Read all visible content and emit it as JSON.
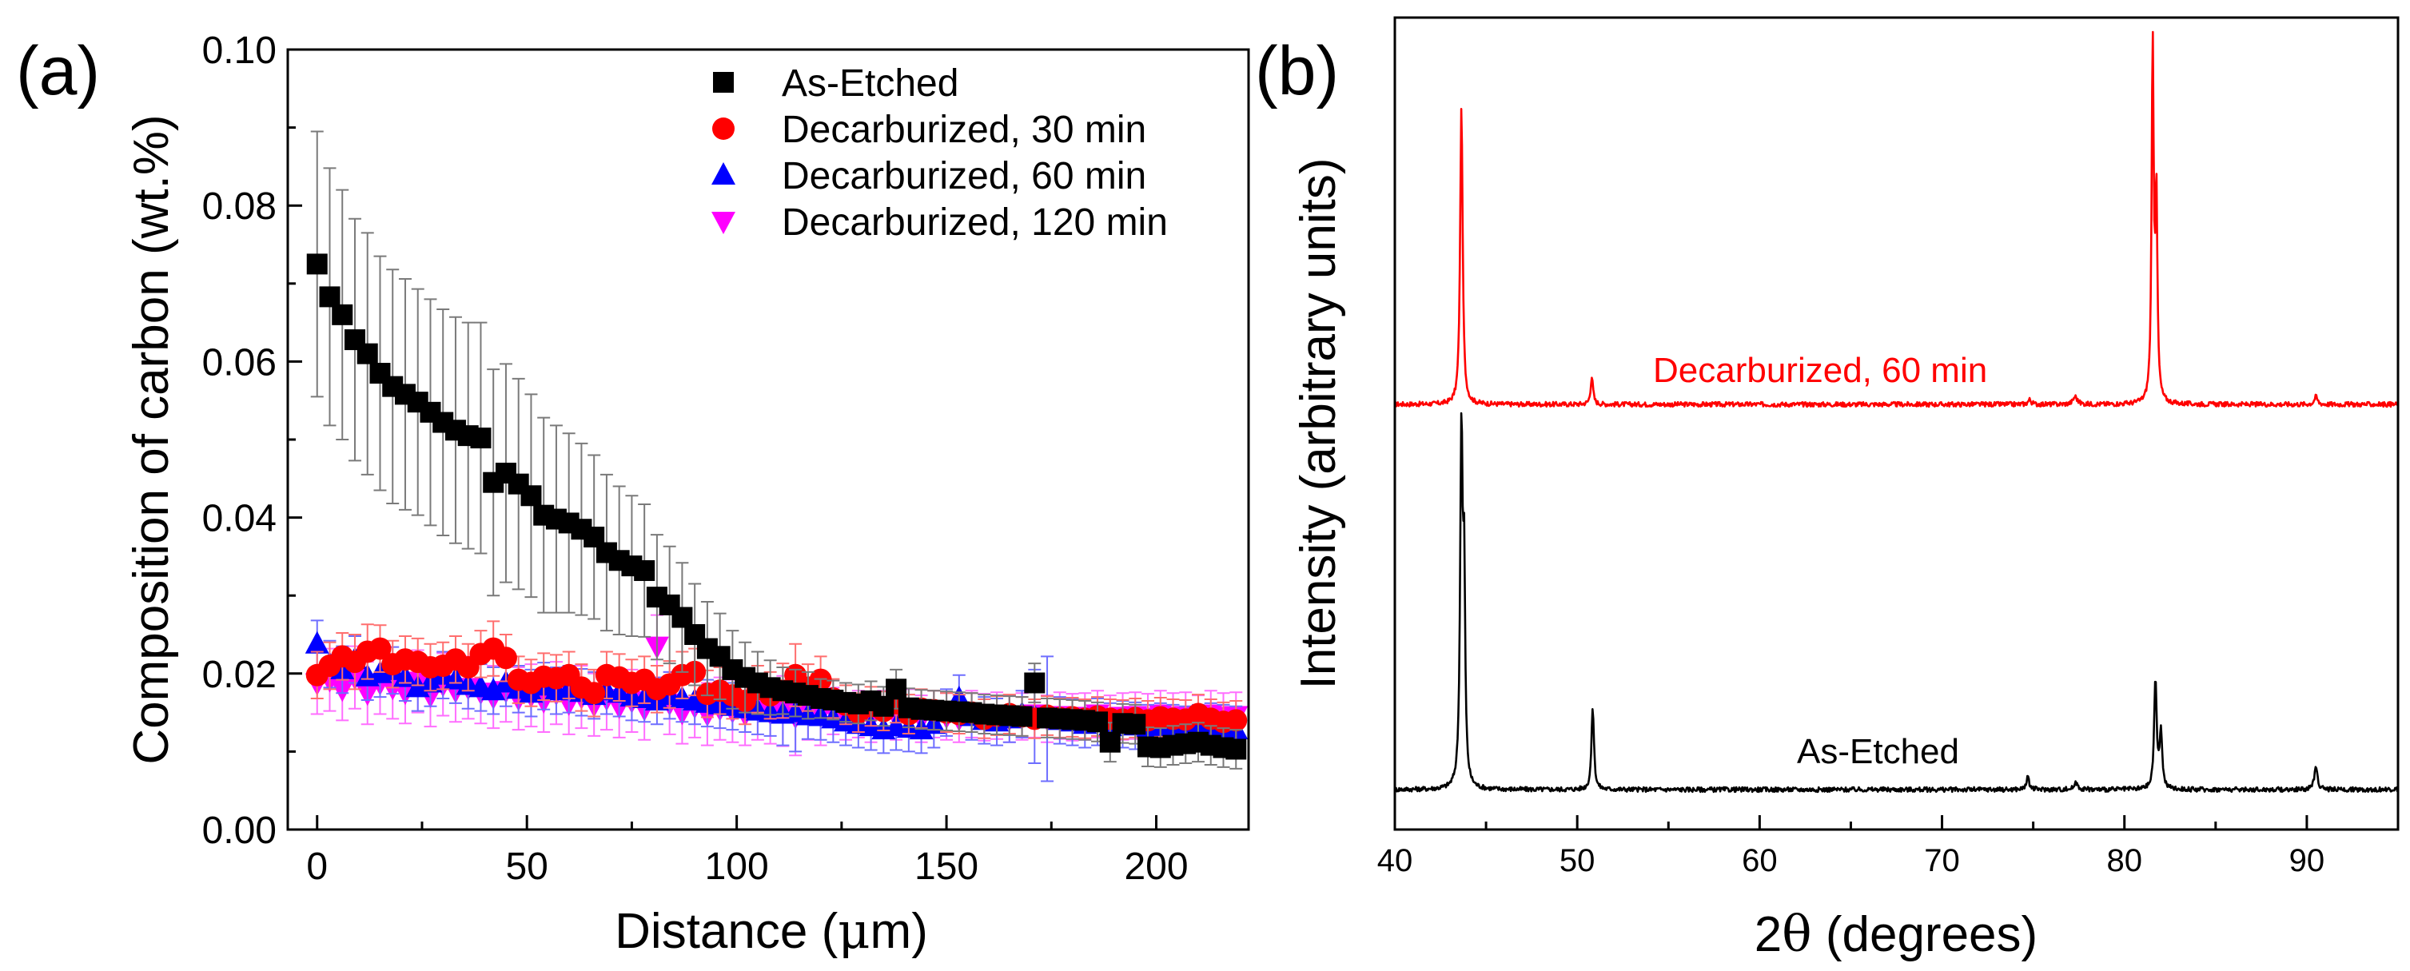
{
  "panel_a": {
    "label": "(a)",
    "xlabel_prefix": "Distance (",
    "xlabel_mu": "μ",
    "xlabel_suffix": "m)",
    "ylabel": "Composition of carbon (wt.%)",
    "legend": [
      {
        "key": "as_etched",
        "label": "As-Etched"
      },
      {
        "key": "d30",
        "label": "Decarburized, 30 min"
      },
      {
        "key": "d60",
        "label": "Decarburized, 60 min"
      },
      {
        "key": "d120",
        "label": "Decarburized, 120 min"
      }
    ]
  },
  "panel_b": {
    "label": "(b)",
    "xlabel_prefix": "2",
    "xlabel_theta": "θ",
    "xlabel_suffix": " (degrees)",
    "ylabel": "Intensity (arbitrary units)",
    "curve_labels": {
      "top": "Decarburized, 60 min",
      "bottom": "As-Etched"
    }
  },
  "chart_data": [
    {
      "type": "scatter",
      "title": "",
      "xlabel": "Distance (μm)",
      "ylabel": "Composition of carbon (wt.%)",
      "xlim": [
        -7,
        222
      ],
      "ylim": [
        0,
        0.1
      ],
      "xticks": [
        0,
        50,
        100,
        150,
        200
      ],
      "yticks": [
        "0.00",
        "0.02",
        "0.04",
        "0.06",
        "0.08",
        "0.10"
      ],
      "x": [
        0,
        3,
        6,
        9,
        12,
        15,
        18,
        21,
        24,
        27,
        30,
        33,
        36,
        39,
        42,
        45,
        48,
        51,
        54,
        57,
        60,
        63,
        66,
        69,
        72,
        75,
        78,
        81,
        84,
        87,
        90,
        93,
        96,
        99,
        102,
        105,
        108,
        111,
        114,
        117,
        120,
        123,
        126,
        129,
        132,
        135,
        138,
        141,
        144,
        147,
        150,
        153,
        156,
        159,
        162,
        165,
        168,
        171,
        174,
        177,
        180,
        183,
        186,
        189,
        192,
        195,
        198,
        201,
        204,
        207,
        210,
        213,
        216,
        219
      ],
      "series": [
        {
          "name": "As-Etched",
          "color": "#000000",
          "marker": "square",
          "values": [
            0.0725,
            0.0683,
            0.066,
            0.0628,
            0.061,
            0.0585,
            0.0568,
            0.0558,
            0.0548,
            0.0535,
            0.0522,
            0.0512,
            0.0505,
            0.0502,
            0.0445,
            0.0457,
            0.0443,
            0.0428,
            0.0403,
            0.0398,
            0.0393,
            0.0385,
            0.0375,
            0.0355,
            0.0345,
            0.0338,
            0.0332,
            0.0298,
            0.0288,
            0.0272,
            0.025,
            0.0232,
            0.0222,
            0.0205,
            0.0195,
            0.0188,
            0.0182,
            0.0178,
            0.0175,
            0.0172,
            0.0168,
            0.0166,
            0.0163,
            0.0161,
            0.0165,
            0.0158,
            0.018,
            0.0156,
            0.0154,
            0.0153,
            0.0152,
            0.0151,
            0.015,
            0.0148,
            0.0147,
            0.0146,
            0.0145,
            0.0188,
            0.0143,
            0.0142,
            0.0141,
            0.014,
            0.0138,
            0.0112,
            0.0136,
            0.0135,
            0.0106,
            0.0105,
            0.0108,
            0.011,
            0.0112,
            0.0108,
            0.0105,
            0.0103
          ],
          "errors": [
            0.017,
            0.0165,
            0.016,
            0.0155,
            0.0155,
            0.015,
            0.015,
            0.0148,
            0.0145,
            0.0145,
            0.0145,
            0.0145,
            0.0145,
            0.0148,
            0.0145,
            0.014,
            0.0135,
            0.013,
            0.0125,
            0.012,
            0.0115,
            0.011,
            0.0105,
            0.01,
            0.0095,
            0.009,
            0.0085,
            0.008,
            0.0075,
            0.007,
            0.0065,
            0.006,
            0.0055,
            0.005,
            0.0045,
            0.004,
            0.0035,
            0.003,
            0.003,
            0.003,
            0.0025,
            0.0025,
            0.0025,
            0.0025,
            0.0025,
            0.0025,
            0.0025,
            0.0025,
            0.0025,
            0.0025,
            0.0025,
            0.0025,
            0.0025,
            0.0025,
            0.0025,
            0.0025,
            0.0025,
            0.0025,
            0.0025,
            0.0025,
            0.0025,
            0.0025,
            0.0025,
            0.0025,
            0.0025,
            0.0025,
            0.0025,
            0.0025,
            0.0025,
            0.0025,
            0.0025,
            0.0025,
            0.0025,
            0.0025
          ]
        },
        {
          "name": "Decarburized, 30 min",
          "color": "#ff0000",
          "marker": "circle",
          "values": [
            0.0198,
            0.021,
            0.0222,
            0.0215,
            0.0228,
            0.0232,
            0.0212,
            0.0218,
            0.0215,
            0.0208,
            0.021,
            0.0218,
            0.0208,
            0.0225,
            0.0232,
            0.022,
            0.0192,
            0.0188,
            0.0196,
            0.0194,
            0.0198,
            0.0182,
            0.0175,
            0.0198,
            0.0195,
            0.0188,
            0.0192,
            0.018,
            0.0186,
            0.0198,
            0.0202,
            0.0174,
            0.0178,
            0.0172,
            0.0165,
            0.018,
            0.0172,
            0.0178,
            0.0198,
            0.0182,
            0.0192,
            0.0168,
            0.016,
            0.015,
            0.0158,
            0.0152,
            0.0162,
            0.0148,
            0.0155,
            0.0153,
            0.015,
            0.0148,
            0.015,
            0.0142,
            0.0146,
            0.0148,
            0.0145,
            0.0142,
            0.0146,
            0.0143,
            0.0144,
            0.0142,
            0.0145,
            0.0142,
            0.0141,
            0.0143,
            0.014,
            0.0144,
            0.0142,
            0.0141,
            0.0148,
            0.0142,
            0.0138,
            0.014
          ],
          "errors": [
            0.003,
            0.003,
            0.003,
            0.0035,
            0.0035,
            0.003,
            0.003,
            0.003,
            0.003,
            0.003,
            0.003,
            0.003,
            0.003,
            0.003,
            0.0035,
            0.003,
            0.003,
            0.003,
            0.003,
            0.003,
            0.003,
            0.003,
            0.003,
            0.003,
            0.003,
            0.003,
            0.003,
            0.003,
            0.003,
            0.003,
            0.003,
            0.003,
            0.003,
            0.003,
            0.003,
            0.003,
            0.003,
            0.0035,
            0.004,
            0.003,
            0.003,
            0.0025,
            0.0025,
            0.0025,
            0.0025,
            0.0025,
            0.0025,
            0.0025,
            0.0025,
            0.0025,
            0.0025,
            0.0025,
            0.0025,
            0.0025,
            0.0025,
            0.0025,
            0.0025,
            0.0025,
            0.0025,
            0.0025,
            0.0025,
            0.0025,
            0.0025,
            0.0025,
            0.0025,
            0.0025,
            0.0025,
            0.0025,
            0.0025,
            0.0025,
            0.0025,
            0.0025,
            0.0025,
            0.0025
          ]
        },
        {
          "name": "Decarburized, 60 min",
          "color": "#0000ff",
          "marker": "triangle-up",
          "values": [
            0.0238,
            0.0212,
            0.0205,
            0.0218,
            0.0196,
            0.02,
            0.0204,
            0.0195,
            0.0182,
            0.0188,
            0.0198,
            0.0192,
            0.0185,
            0.0182,
            0.0178,
            0.0188,
            0.018,
            0.0175,
            0.0184,
            0.0178,
            0.018,
            0.0176,
            0.0172,
            0.0178,
            0.0175,
            0.017,
            0.0168,
            0.0165,
            0.0172,
            0.0168,
            0.0165,
            0.0162,
            0.016,
            0.0158,
            0.0155,
            0.0152,
            0.015,
            0.0148,
            0.015,
            0.0146,
            0.0145,
            0.0142,
            0.0138,
            0.0135,
            0.0132,
            0.0128,
            0.0132,
            0.013,
            0.0128,
            0.0135,
            0.015,
            0.0168,
            0.0145,
            0.014,
            0.0138,
            0.0142,
            0.0148,
            0.0145,
            0.0142,
            0.014,
            0.0138,
            0.0135,
            0.0138,
            0.0132,
            0.0135,
            0.0133,
            0.013,
            0.0132,
            0.013,
            0.0128,
            0.013,
            0.0132,
            0.013,
            0.0128
          ],
          "errors": [
            0.003,
            0.003,
            0.003,
            0.003,
            0.003,
            0.003,
            0.003,
            0.003,
            0.003,
            0.003,
            0.003,
            0.003,
            0.003,
            0.003,
            0.003,
            0.003,
            0.003,
            0.003,
            0.003,
            0.003,
            0.003,
            0.003,
            0.003,
            0.003,
            0.003,
            0.003,
            0.003,
            0.003,
            0.003,
            0.003,
            0.003,
            0.003,
            0.003,
            0.003,
            0.003,
            0.003,
            0.003,
            0.004,
            0.005,
            0.003,
            0.003,
            0.003,
            0.003,
            0.003,
            0.003,
            0.003,
            0.003,
            0.003,
            0.003,
            0.003,
            0.003,
            0.003,
            0.003,
            0.003,
            0.003,
            0.003,
            0.003,
            0.006,
            0.008,
            0.003,
            0.003,
            0.003,
            0.003,
            0.003,
            0.003,
            0.003,
            0.003,
            0.003,
            0.003,
            0.003,
            0.003,
            0.003,
            0.003,
            0.003
          ]
        },
        {
          "name": "Decarburized, 120 min",
          "color": "#ff00ff",
          "marker": "triangle-down",
          "values": [
            0.0188,
            0.0192,
            0.018,
            0.0195,
            0.0175,
            0.0188,
            0.0182,
            0.0176,
            0.019,
            0.0172,
            0.0186,
            0.0178,
            0.0182,
            0.0176,
            0.017,
            0.0178,
            0.0168,
            0.0172,
            0.0165,
            0.0175,
            0.0162,
            0.017,
            0.016,
            0.0168,
            0.0158,
            0.0165,
            0.0155,
            0.0235,
            0.0162,
            0.015,
            0.0158,
            0.0148,
            0.0155,
            0.0152,
            0.0148,
            0.0155,
            0.015,
            0.0152,
            0.0145,
            0.0155,
            0.0148,
            0.0152,
            0.0145,
            0.0148,
            0.0142,
            0.0148,
            0.0145,
            0.015,
            0.0142,
            0.0148,
            0.0145,
            0.0142,
            0.0148,
            0.0144,
            0.0146,
            0.0142,
            0.0145,
            0.0148,
            0.0142,
            0.0146,
            0.0144,
            0.0145,
            0.0148,
            0.0142,
            0.0145,
            0.0146,
            0.0144,
            0.0148,
            0.0145,
            0.0146,
            0.0142,
            0.0148,
            0.0145,
            0.0146
          ],
          "errors": [
            0.004,
            0.004,
            0.004,
            0.004,
            0.004,
            0.004,
            0.004,
            0.004,
            0.004,
            0.004,
            0.004,
            0.004,
            0.004,
            0.004,
            0.004,
            0.004,
            0.004,
            0.004,
            0.004,
            0.004,
            0.004,
            0.004,
            0.004,
            0.004,
            0.004,
            0.004,
            0.004,
            0.004,
            0.004,
            0.004,
            0.004,
            0.004,
            0.004,
            0.004,
            0.004,
            0.004,
            0.004,
            0.0045,
            0.005,
            0.004,
            0.004,
            0.003,
            0.003,
            0.003,
            0.003,
            0.003,
            0.003,
            0.003,
            0.003,
            0.003,
            0.003,
            0.003,
            0.003,
            0.003,
            0.003,
            0.003,
            0.003,
            0.003,
            0.003,
            0.003,
            0.003,
            0.003,
            0.003,
            0.003,
            0.003,
            0.003,
            0.003,
            0.003,
            0.003,
            0.003,
            0.003,
            0.003,
            0.003,
            0.003
          ]
        }
      ],
      "legend_position": "top-right"
    },
    {
      "type": "line",
      "title": "",
      "xlabel": "2θ (degrees)",
      "ylabel": "Intensity (arbitrary units)",
      "xlim": [
        40,
        95
      ],
      "xticks": [
        40,
        50,
        60,
        70,
        80,
        90
      ],
      "ylim": [
        0,
        1
      ],
      "series": [
        {
          "name": "Decarburized, 60 min",
          "color": "#ff0000",
          "baseline": 0.49,
          "peaks": [
            {
              "x": 43.65,
              "height": 0.38,
              "width": 0.12
            },
            {
              "x": 50.8,
              "height": 0.035,
              "width": 0.12
            },
            {
              "x": 74.8,
              "height": 0.006,
              "width": 0.15
            },
            {
              "x": 77.3,
              "height": 0.01,
              "width": 0.2
            },
            {
              "x": 81.55,
              "height": 0.455,
              "width": 0.1
            },
            {
              "x": 81.75,
              "height": 0.26,
              "width": 0.1
            },
            {
              "x": 90.5,
              "height": 0.01,
              "width": 0.15
            }
          ]
        },
        {
          "name": "As-Etched",
          "color": "#000000",
          "baseline": 0.0,
          "peaks": [
            {
              "x": 43.65,
              "height": 0.45,
              "width": 0.12
            },
            {
              "x": 43.8,
              "height": 0.25,
              "width": 0.1
            },
            {
              "x": 50.85,
              "height": 0.105,
              "width": 0.12
            },
            {
              "x": 74.7,
              "height": 0.015,
              "width": 0.15
            },
            {
              "x": 77.35,
              "height": 0.008,
              "width": 0.2
            },
            {
              "x": 81.7,
              "height": 0.142,
              "width": 0.12
            },
            {
              "x": 82.0,
              "height": 0.075,
              "width": 0.12
            },
            {
              "x": 90.5,
              "height": 0.03,
              "width": 0.15
            }
          ]
        }
      ]
    }
  ]
}
